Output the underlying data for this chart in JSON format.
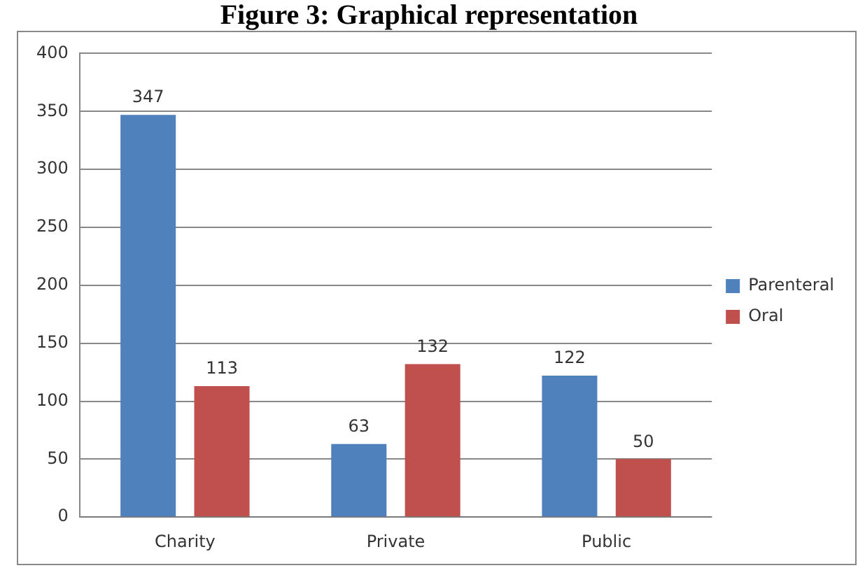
{
  "chart_data": {
    "type": "bar",
    "title": "Figure 3: Graphical representation",
    "categories": [
      "Charity",
      "Private",
      "Public"
    ],
    "series": [
      {
        "name": "Parenteral",
        "color": "#4f81bd",
        "values": [
          347,
          63,
          122
        ]
      },
      {
        "name": "Oral",
        "color": "#c0504d",
        "values": [
          113,
          132,
          50
        ]
      }
    ],
    "ylim": [
      0,
      400
    ],
    "yticks": [
      0,
      50,
      100,
      150,
      200,
      250,
      300,
      350,
      400
    ],
    "grid": "y",
    "legend": "right",
    "data_labels": true
  }
}
